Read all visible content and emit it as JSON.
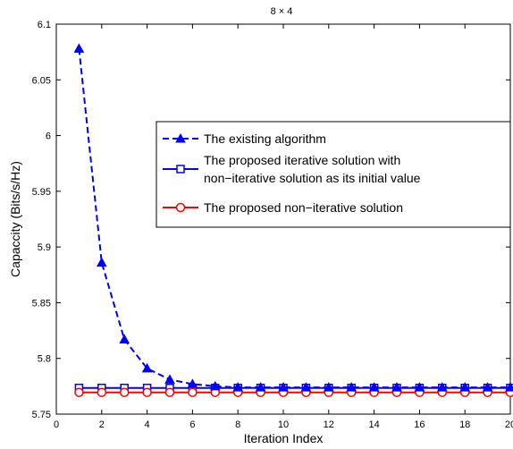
{
  "chart_data": {
    "type": "line",
    "title": "8 × 4",
    "xlabel": "Iteration Index",
    "ylabel": "Capaccity (Bits/s/Hz)",
    "xlim": [
      0,
      20
    ],
    "ylim": [
      5.75,
      6.1
    ],
    "xticks": [
      "0",
      "2",
      "4",
      "6",
      "8",
      "10",
      "12",
      "14",
      "16",
      "18",
      "20"
    ],
    "yticks": [
      "5.75",
      "5.8",
      "5.85",
      "5.9",
      "5.95",
      "6",
      "6.05",
      "6.1"
    ],
    "grid": false,
    "legend_position": "center-right",
    "x": [
      1,
      2,
      3,
      4,
      5,
      6,
      7,
      8,
      9,
      10,
      11,
      12,
      13,
      14,
      15,
      16,
      17,
      18,
      19,
      20
    ],
    "series": [
      {
        "name": "The existing algorithm",
        "color": "#0000ff",
        "line_style": "dashed",
        "marker": "triangle",
        "values": [
          6.078,
          5.886,
          5.817,
          5.791,
          5.781,
          5.777,
          5.775,
          5.774,
          5.774,
          5.774,
          5.774,
          5.774,
          5.774,
          5.774,
          5.774,
          5.774,
          5.774,
          5.774,
          5.774,
          5.774
        ]
      },
      {
        "name": "The proposed iterative solution with non−iterative solution as its initial value",
        "legend_lines": [
          "The proposed iterative solution with",
          "non−iterative solution as its initial value"
        ],
        "color": "#0000ff",
        "line_style": "solid",
        "marker": "square",
        "values": [
          5.7735,
          5.7735,
          5.7735,
          5.7735,
          5.7735,
          5.7735,
          5.7735,
          5.7735,
          5.7735,
          5.7735,
          5.7735,
          5.7735,
          5.7735,
          5.7735,
          5.7735,
          5.7735,
          5.7735,
          5.7735,
          5.7735,
          5.7735
        ]
      },
      {
        "name": "The proposed non−iterative solution",
        "color": "#ff0000",
        "line_style": "solid",
        "marker": "circle",
        "values": [
          5.7695,
          5.7695,
          5.7695,
          5.7695,
          5.7695,
          5.7695,
          5.7695,
          5.7695,
          5.7695,
          5.7695,
          5.7695,
          5.7695,
          5.7695,
          5.7695,
          5.7695,
          5.7695,
          5.7695,
          5.7695,
          5.7695,
          5.7695
        ]
      }
    ]
  }
}
